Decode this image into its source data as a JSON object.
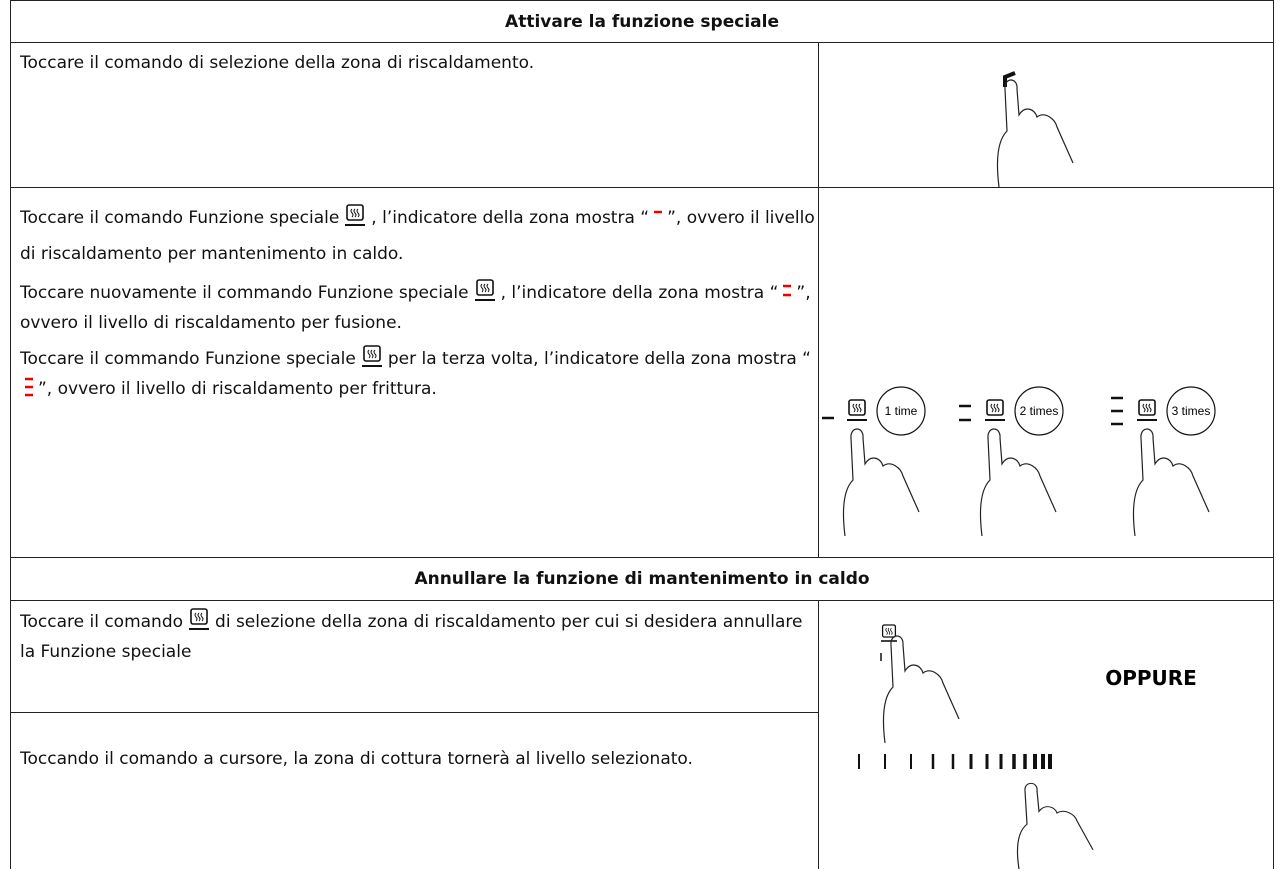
{
  "sections": [
    {
      "heading": "Attivare la funzione speciale",
      "rows": [
        {
          "paragraphs": [
            [
              "Toccare il comando di selezione della zona di riscaldamento."
            ]
          ]
        },
        {
          "paragraphs": [
            [
              "Toccare il comando Funzione speciale",
              ", l’indicatore della zona mostra “",
              "”, ovvero il livello di riscaldamento per mantenimento in caldo."
            ],
            [
              "Toccare nuovamente il commando Funzione speciale",
              ", l’indicatore della zona mostra “",
              "”, ovvero il livello di riscaldamento per fusione."
            ],
            [
              "Toccare il commando Funzione speciale",
              "per la terza volta, l’indicatore della zona mostra “",
              "”, ovvero il livello di riscaldamento per frittura."
            ]
          ]
        }
      ],
      "figure_labels": [
        "1 time",
        "2 times",
        "3 times"
      ]
    },
    {
      "heading": "Annullare la funzione di mantenimento in caldo",
      "rows": [
        {
          "paragraphs": [
            [
              "Toccare il comando",
              "di selezione della zona di riscaldamento per cui si desidera annullare la Funzione speciale"
            ]
          ]
        },
        {
          "paragraphs": [
            [
              "Toccando il comando a cursore, la zona di cottura tornerà al livello selezionato."
            ]
          ]
        }
      ],
      "figure_label": "OPPURE"
    }
  ]
}
